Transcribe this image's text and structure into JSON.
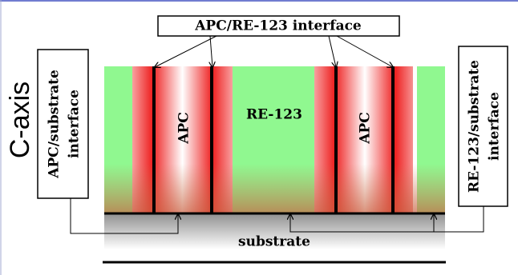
{
  "header": {
    "title": "APC/RE-123 interface"
  },
  "axis_label": "C-axis",
  "left_box": {
    "lines": [
      "APC/substrate",
      "interface"
    ]
  },
  "right_box": {
    "lines": [
      "RE-123/substrate",
      "interface"
    ]
  },
  "regions": {
    "labels": [
      "APC",
      "RE-123",
      "APC"
    ]
  },
  "substrate": "substrate"
}
